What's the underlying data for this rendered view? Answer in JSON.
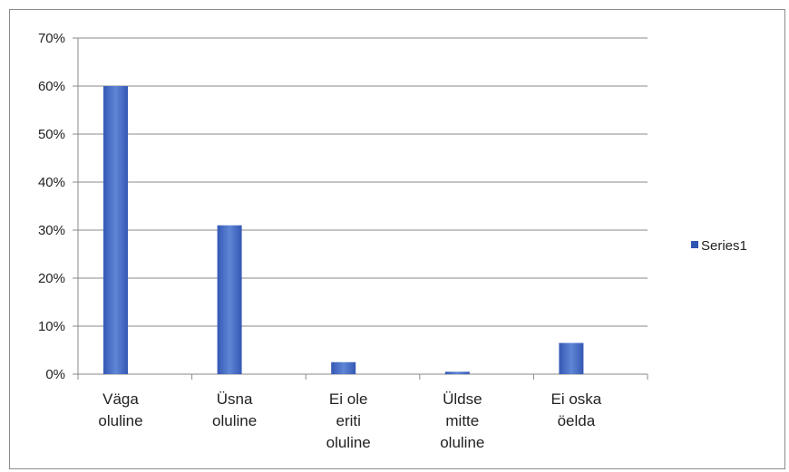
{
  "chart_data": {
    "type": "bar",
    "categories": [
      [
        "Väga",
        "oluline"
      ],
      [
        "Üsna",
        "oluline"
      ],
      [
        "Ei ole",
        "eriti",
        "oluline"
      ],
      [
        "Üldse",
        "mitte",
        "oluline"
      ],
      [
        "Ei oska",
        "öelda"
      ]
    ],
    "series": [
      {
        "name": "Series1",
        "values": [
          0.6,
          0.31,
          0.025,
          0.005,
          0.065
        ]
      }
    ],
    "ylim": [
      0,
      0.7
    ],
    "yticks": [
      0,
      0.1,
      0.2,
      0.3,
      0.4,
      0.5,
      0.6,
      0.7
    ],
    "ytick_labels": [
      "0%",
      "10%",
      "20%",
      "30%",
      "40%",
      "50%",
      "60%",
      "70%"
    ],
    "grid": true,
    "legend_position": "right",
    "colors": {
      "bar": "#4a6fc4",
      "bar_dark": "#2e55b0",
      "grid": "#8a8a8a"
    }
  }
}
